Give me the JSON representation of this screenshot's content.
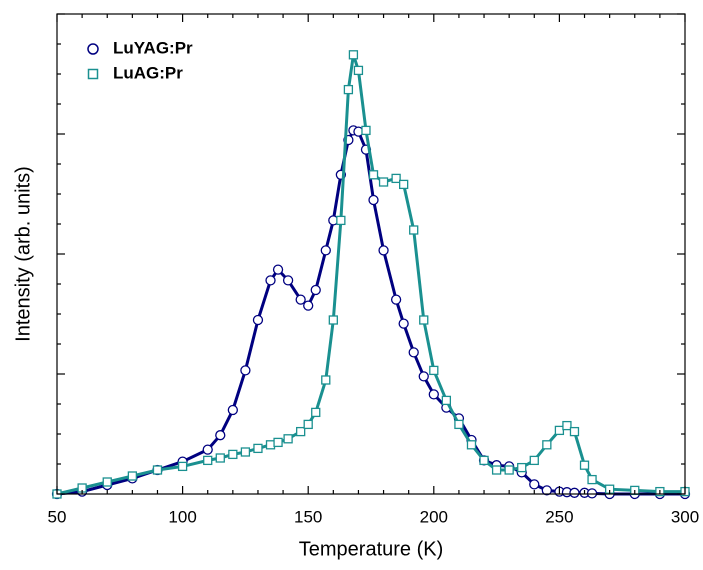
{
  "chart_data": {
    "type": "scatter",
    "xlabel": "Temperature (K)",
    "ylabel": "Intensity (arb. units)",
    "x": [
      50,
      60,
      70,
      80,
      90,
      100,
      110,
      115,
      120,
      125,
      130,
      135,
      138,
      142,
      147,
      150,
      153,
      157,
      160,
      163,
      166,
      168,
      170,
      173,
      176,
      180,
      185,
      188,
      192,
      196,
      200,
      205,
      210,
      215,
      220,
      225,
      230,
      235,
      240,
      245,
      250,
      253,
      256,
      260,
      263,
      270,
      280,
      290,
      300
    ],
    "series": [
      {
        "name": "LuYAG:Pr",
        "color": "#000080",
        "marker": "circle",
        "values": [
          0,
          0.02,
          0.075,
          0.13,
          0.2,
          0.27,
          0.37,
          0.49,
          0.7,
          1.03,
          1.45,
          1.78,
          1.87,
          1.78,
          1.62,
          1.57,
          1.7,
          2.03,
          2.28,
          2.66,
          2.95,
          3.03,
          3.02,
          2.87,
          2.45,
          2.03,
          1.62,
          1.42,
          1.18,
          0.98,
          0.83,
          0.72,
          0.63,
          0.45,
          0.28,
          0.24,
          0.23,
          0.18,
          0.08,
          0.03,
          0.02,
          0.015,
          0.01,
          0.01,
          0.005,
          0,
          0,
          0,
          0
        ]
      },
      {
        "name": "LuAG:Pr",
        "color": "#1a9090",
        "marker": "square",
        "values": [
          0,
          0.05,
          0.1,
          0.15,
          0.2,
          0.23,
          0.28,
          0.3,
          0.33,
          0.35,
          0.38,
          0.41,
          0.43,
          0.46,
          0.52,
          0.58,
          0.68,
          0.95,
          1.45,
          2.28,
          3.37,
          3.66,
          3.53,
          3.03,
          2.66,
          2.6,
          2.63,
          2.58,
          2.2,
          1.45,
          1.03,
          0.78,
          0.58,
          0.41,
          0.28,
          0.2,
          0.2,
          0.22,
          0.28,
          0.41,
          0.53,
          0.57,
          0.52,
          0.24,
          0.12,
          0.04,
          0.03,
          0.02,
          0.02
        ]
      }
    ],
    "xlim": [
      50,
      300
    ],
    "xticks": [
      50,
      100,
      150,
      200,
      250,
      300
    ],
    "ylim": [
      0,
      4
    ],
    "yticks": [
      0,
      1,
      2,
      3,
      4
    ],
    "legend": "upper left"
  }
}
